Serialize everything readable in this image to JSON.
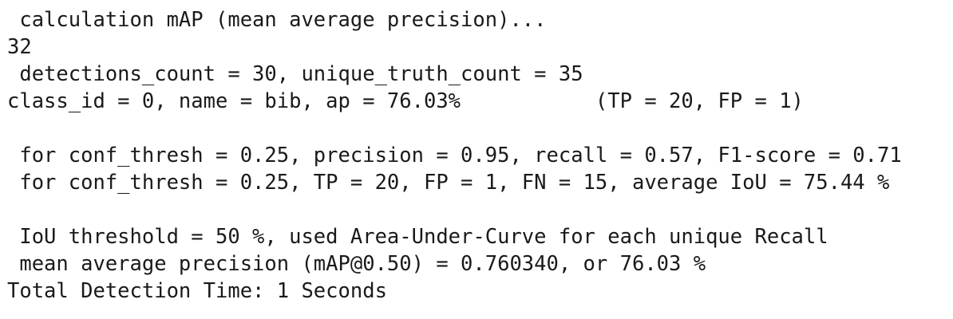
{
  "terminal": {
    "lines": [
      " calculation mAP (mean average precision)...",
      "32",
      " detections_count = 30, unique_truth_count = 35",
      "class_id = 0, name = bib, ap = 76.03%           (TP = 20, FP = 1)",
      "",
      " for conf_thresh = 0.25, precision = 0.95, recall = 0.57, F1-score = 0.71",
      " for conf_thresh = 0.25, TP = 20, FP = 1, FN = 15, average IoU = 75.44 %",
      "",
      " IoU threshold = 50 %, used Area-Under-Curve for each unique Recall",
      " mean average precision (mAP@0.50) = 0.760340, or 76.03 %",
      "Total Detection Time: 1 Seconds"
    ]
  }
}
